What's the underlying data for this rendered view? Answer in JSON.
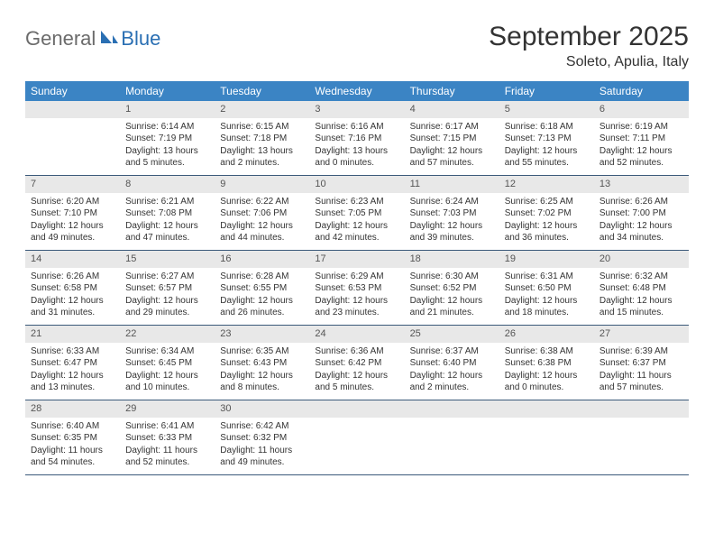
{
  "logo": {
    "gray": "General",
    "blue": "Blue"
  },
  "title": "September 2025",
  "location": "Soleto, Apulia, Italy",
  "weekdays": [
    "Sunday",
    "Monday",
    "Tuesday",
    "Wednesday",
    "Thursday",
    "Friday",
    "Saturday"
  ],
  "colors": {
    "header_bg": "#3b84c4",
    "header_text": "#ffffff",
    "daynum_bg": "#e8e8e8",
    "daynum_text": "#555555",
    "border": "#3b5a7a",
    "logo_gray": "#6b6b6b",
    "logo_blue": "#2a6fb3"
  },
  "weeks": [
    [
      {
        "blank": true
      },
      {
        "n": "1",
        "sr": "Sunrise: 6:14 AM",
        "ss": "Sunset: 7:19 PM",
        "dl1": "Daylight: 13 hours",
        "dl2": "and 5 minutes."
      },
      {
        "n": "2",
        "sr": "Sunrise: 6:15 AM",
        "ss": "Sunset: 7:18 PM",
        "dl1": "Daylight: 13 hours",
        "dl2": "and 2 minutes."
      },
      {
        "n": "3",
        "sr": "Sunrise: 6:16 AM",
        "ss": "Sunset: 7:16 PM",
        "dl1": "Daylight: 13 hours",
        "dl2": "and 0 minutes."
      },
      {
        "n": "4",
        "sr": "Sunrise: 6:17 AM",
        "ss": "Sunset: 7:15 PM",
        "dl1": "Daylight: 12 hours",
        "dl2": "and 57 minutes."
      },
      {
        "n": "5",
        "sr": "Sunrise: 6:18 AM",
        "ss": "Sunset: 7:13 PM",
        "dl1": "Daylight: 12 hours",
        "dl2": "and 55 minutes."
      },
      {
        "n": "6",
        "sr": "Sunrise: 6:19 AM",
        "ss": "Sunset: 7:11 PM",
        "dl1": "Daylight: 12 hours",
        "dl2": "and 52 minutes."
      }
    ],
    [
      {
        "n": "7",
        "sr": "Sunrise: 6:20 AM",
        "ss": "Sunset: 7:10 PM",
        "dl1": "Daylight: 12 hours",
        "dl2": "and 49 minutes."
      },
      {
        "n": "8",
        "sr": "Sunrise: 6:21 AM",
        "ss": "Sunset: 7:08 PM",
        "dl1": "Daylight: 12 hours",
        "dl2": "and 47 minutes."
      },
      {
        "n": "9",
        "sr": "Sunrise: 6:22 AM",
        "ss": "Sunset: 7:06 PM",
        "dl1": "Daylight: 12 hours",
        "dl2": "and 44 minutes."
      },
      {
        "n": "10",
        "sr": "Sunrise: 6:23 AM",
        "ss": "Sunset: 7:05 PM",
        "dl1": "Daylight: 12 hours",
        "dl2": "and 42 minutes."
      },
      {
        "n": "11",
        "sr": "Sunrise: 6:24 AM",
        "ss": "Sunset: 7:03 PM",
        "dl1": "Daylight: 12 hours",
        "dl2": "and 39 minutes."
      },
      {
        "n": "12",
        "sr": "Sunrise: 6:25 AM",
        "ss": "Sunset: 7:02 PM",
        "dl1": "Daylight: 12 hours",
        "dl2": "and 36 minutes."
      },
      {
        "n": "13",
        "sr": "Sunrise: 6:26 AM",
        "ss": "Sunset: 7:00 PM",
        "dl1": "Daylight: 12 hours",
        "dl2": "and 34 minutes."
      }
    ],
    [
      {
        "n": "14",
        "sr": "Sunrise: 6:26 AM",
        "ss": "Sunset: 6:58 PM",
        "dl1": "Daylight: 12 hours",
        "dl2": "and 31 minutes."
      },
      {
        "n": "15",
        "sr": "Sunrise: 6:27 AM",
        "ss": "Sunset: 6:57 PM",
        "dl1": "Daylight: 12 hours",
        "dl2": "and 29 minutes."
      },
      {
        "n": "16",
        "sr": "Sunrise: 6:28 AM",
        "ss": "Sunset: 6:55 PM",
        "dl1": "Daylight: 12 hours",
        "dl2": "and 26 minutes."
      },
      {
        "n": "17",
        "sr": "Sunrise: 6:29 AM",
        "ss": "Sunset: 6:53 PM",
        "dl1": "Daylight: 12 hours",
        "dl2": "and 23 minutes."
      },
      {
        "n": "18",
        "sr": "Sunrise: 6:30 AM",
        "ss": "Sunset: 6:52 PM",
        "dl1": "Daylight: 12 hours",
        "dl2": "and 21 minutes."
      },
      {
        "n": "19",
        "sr": "Sunrise: 6:31 AM",
        "ss": "Sunset: 6:50 PM",
        "dl1": "Daylight: 12 hours",
        "dl2": "and 18 minutes."
      },
      {
        "n": "20",
        "sr": "Sunrise: 6:32 AM",
        "ss": "Sunset: 6:48 PM",
        "dl1": "Daylight: 12 hours",
        "dl2": "and 15 minutes."
      }
    ],
    [
      {
        "n": "21",
        "sr": "Sunrise: 6:33 AM",
        "ss": "Sunset: 6:47 PM",
        "dl1": "Daylight: 12 hours",
        "dl2": "and 13 minutes."
      },
      {
        "n": "22",
        "sr": "Sunrise: 6:34 AM",
        "ss": "Sunset: 6:45 PM",
        "dl1": "Daylight: 12 hours",
        "dl2": "and 10 minutes."
      },
      {
        "n": "23",
        "sr": "Sunrise: 6:35 AM",
        "ss": "Sunset: 6:43 PM",
        "dl1": "Daylight: 12 hours",
        "dl2": "and 8 minutes."
      },
      {
        "n": "24",
        "sr": "Sunrise: 6:36 AM",
        "ss": "Sunset: 6:42 PM",
        "dl1": "Daylight: 12 hours",
        "dl2": "and 5 minutes."
      },
      {
        "n": "25",
        "sr": "Sunrise: 6:37 AM",
        "ss": "Sunset: 6:40 PM",
        "dl1": "Daylight: 12 hours",
        "dl2": "and 2 minutes."
      },
      {
        "n": "26",
        "sr": "Sunrise: 6:38 AM",
        "ss": "Sunset: 6:38 PM",
        "dl1": "Daylight: 12 hours",
        "dl2": "and 0 minutes."
      },
      {
        "n": "27",
        "sr": "Sunrise: 6:39 AM",
        "ss": "Sunset: 6:37 PM",
        "dl1": "Daylight: 11 hours",
        "dl2": "and 57 minutes."
      }
    ],
    [
      {
        "n": "28",
        "sr": "Sunrise: 6:40 AM",
        "ss": "Sunset: 6:35 PM",
        "dl1": "Daylight: 11 hours",
        "dl2": "and 54 minutes."
      },
      {
        "n": "29",
        "sr": "Sunrise: 6:41 AM",
        "ss": "Sunset: 6:33 PM",
        "dl1": "Daylight: 11 hours",
        "dl2": "and 52 minutes."
      },
      {
        "n": "30",
        "sr": "Sunrise: 6:42 AM",
        "ss": "Sunset: 6:32 PM",
        "dl1": "Daylight: 11 hours",
        "dl2": "and 49 minutes."
      },
      {
        "blank": true
      },
      {
        "blank": true
      },
      {
        "blank": true
      },
      {
        "blank": true
      }
    ]
  ]
}
